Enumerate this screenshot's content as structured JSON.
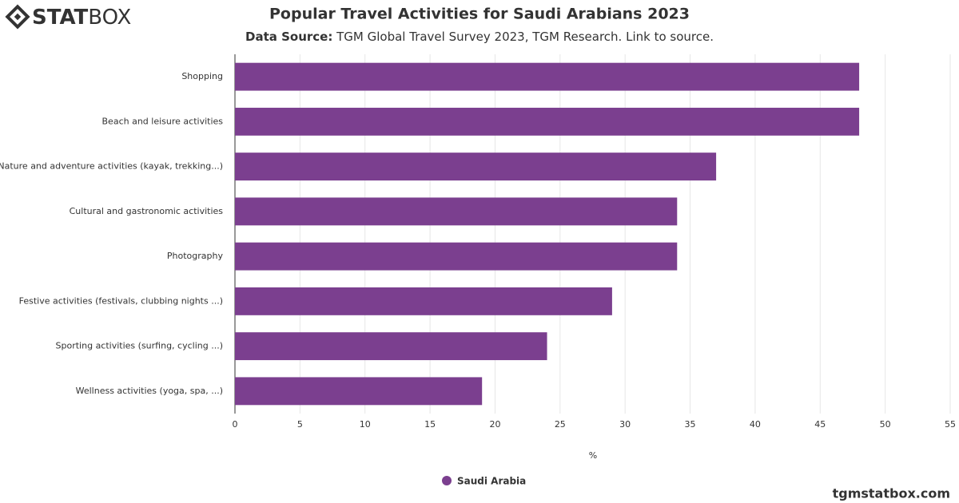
{
  "logo": {
    "bold": "STAT",
    "light": "BOX"
  },
  "footer": "tgmstatbox.com",
  "chart_data": {
    "type": "bar",
    "orientation": "horizontal",
    "title": "Popular Travel Activities for Saudi Arabians 2023",
    "subtitle_label": "Data Source:",
    "subtitle": "TGM Global Travel Survey 2023, TGM Research. Link to source.",
    "x_label": "%",
    "categories": [
      "Shopping",
      "Beach and leisure activities",
      "Nature and adventure activities (kayak, trekking...)",
      "Cultural and gastronomic activities",
      "Photography",
      "Festive activities (festivals, clubbing nights ...)",
      "Sporting activities (surfing, cycling ...)",
      "Wellness activities (yoga, spa, ...)"
    ],
    "series": [
      {
        "name": "Saudi Arabia",
        "color": "#7b3f8f",
        "values": [
          48,
          48,
          37,
          34,
          34,
          29,
          24,
          19
        ]
      }
    ],
    "xlim": [
      0,
      55
    ],
    "xticks": [
      0,
      5,
      10,
      15,
      20,
      25,
      30,
      35,
      40,
      45,
      50,
      55
    ],
    "grid": true,
    "legend": "bottom"
  }
}
